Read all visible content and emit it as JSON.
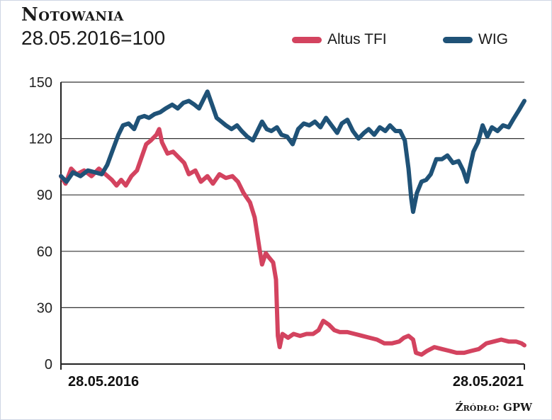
{
  "header": {
    "title": "Notowania",
    "subtitle": "28.05.2016=100"
  },
  "legend": [
    {
      "name": "Altus TFI",
      "color": "#d3435f"
    },
    {
      "name": "WIG",
      "color": "#1f5277"
    }
  ],
  "source": "Źródło: GPW",
  "chart_data": {
    "type": "line",
    "title": "Notowania",
    "subtitle": "28.05.2016=100",
    "xlabel": "",
    "ylabel": "",
    "ylim": [
      0,
      150
    ],
    "yticks": [
      0,
      30,
      60,
      90,
      120,
      150
    ],
    "xlim": [
      2016.41,
      2021.41
    ],
    "xtick_labels": [
      {
        "x": 2016.41,
        "label": "28.05.2016"
      },
      {
        "x": 2021.41,
        "label": "28.05.2021"
      }
    ],
    "grid": "horizontal",
    "legend_position": "top-right",
    "series": [
      {
        "name": "Altus TFI",
        "color": "#d3435f",
        "points": [
          [
            2016.41,
            100
          ],
          [
            2016.46,
            96
          ],
          [
            2016.52,
            104
          ],
          [
            2016.58,
            101
          ],
          [
            2016.66,
            103
          ],
          [
            2016.74,
            100
          ],
          [
            2016.82,
            104
          ],
          [
            2016.89,
            101
          ],
          [
            2016.96,
            98
          ],
          [
            2017.01,
            95
          ],
          [
            2017.06,
            98
          ],
          [
            2017.11,
            95
          ],
          [
            2017.17,
            100
          ],
          [
            2017.23,
            103
          ],
          [
            2017.28,
            110
          ],
          [
            2017.33,
            117
          ],
          [
            2017.38,
            119
          ],
          [
            2017.44,
            122
          ],
          [
            2017.47,
            125
          ],
          [
            2017.5,
            118
          ],
          [
            2017.56,
            112
          ],
          [
            2017.62,
            113
          ],
          [
            2017.68,
            110
          ],
          [
            2017.74,
            107
          ],
          [
            2017.79,
            101
          ],
          [
            2017.86,
            103
          ],
          [
            2017.92,
            97
          ],
          [
            2017.99,
            100
          ],
          [
            2018.05,
            96
          ],
          [
            2018.12,
            101
          ],
          [
            2018.19,
            99
          ],
          [
            2018.26,
            100
          ],
          [
            2018.32,
            97
          ],
          [
            2018.38,
            91
          ],
          [
            2018.45,
            86
          ],
          [
            2018.5,
            78
          ],
          [
            2018.55,
            62
          ],
          [
            2018.58,
            53
          ],
          [
            2018.62,
            59
          ],
          [
            2018.65,
            57
          ],
          [
            2018.7,
            54
          ],
          [
            2018.73,
            45
          ],
          [
            2018.75,
            15
          ],
          [
            2018.77,
            9
          ],
          [
            2018.8,
            16
          ],
          [
            2018.86,
            14
          ],
          [
            2018.92,
            16
          ],
          [
            2018.99,
            15
          ],
          [
            2019.06,
            16
          ],
          [
            2019.13,
            16
          ],
          [
            2019.19,
            18
          ],
          [
            2019.24,
            23
          ],
          [
            2019.3,
            21
          ],
          [
            2019.36,
            18
          ],
          [
            2019.42,
            17
          ],
          [
            2019.5,
            17
          ],
          [
            2019.58,
            16
          ],
          [
            2019.66,
            15
          ],
          [
            2019.74,
            14
          ],
          [
            2019.82,
            13
          ],
          [
            2019.9,
            11
          ],
          [
            2019.98,
            11
          ],
          [
            2020.06,
            12
          ],
          [
            2020.11,
            14
          ],
          [
            2020.16,
            15
          ],
          [
            2020.21,
            13
          ],
          [
            2020.24,
            6
          ],
          [
            2020.3,
            5
          ],
          [
            2020.36,
            7
          ],
          [
            2020.44,
            9
          ],
          [
            2020.52,
            8
          ],
          [
            2020.6,
            7
          ],
          [
            2020.68,
            6
          ],
          [
            2020.76,
            6
          ],
          [
            2020.84,
            7
          ],
          [
            2020.92,
            8
          ],
          [
            2021.0,
            11
          ],
          [
            2021.08,
            12
          ],
          [
            2021.16,
            13
          ],
          [
            2021.24,
            12
          ],
          [
            2021.32,
            12
          ],
          [
            2021.38,
            11
          ],
          [
            2021.41,
            10
          ]
        ]
      },
      {
        "name": "WIG",
        "color": "#1f5277",
        "points": [
          [
            2016.41,
            100
          ],
          [
            2016.47,
            97
          ],
          [
            2016.54,
            102
          ],
          [
            2016.62,
            100
          ],
          [
            2016.7,
            103
          ],
          [
            2016.78,
            102
          ],
          [
            2016.85,
            101
          ],
          [
            2016.91,
            106
          ],
          [
            2016.97,
            114
          ],
          [
            2017.03,
            122
          ],
          [
            2017.08,
            127
          ],
          [
            2017.14,
            128
          ],
          [
            2017.2,
            125
          ],
          [
            2017.25,
            131
          ],
          [
            2017.31,
            132
          ],
          [
            2017.36,
            131
          ],
          [
            2017.42,
            133
          ],
          [
            2017.48,
            134
          ],
          [
            2017.54,
            136
          ],
          [
            2017.61,
            138
          ],
          [
            2017.67,
            136
          ],
          [
            2017.73,
            139
          ],
          [
            2017.79,
            140
          ],
          [
            2017.85,
            138
          ],
          [
            2017.9,
            136
          ],
          [
            2017.95,
            141
          ],
          [
            2017.99,
            145
          ],
          [
            2018.04,
            138
          ],
          [
            2018.09,
            131
          ],
          [
            2018.14,
            129
          ],
          [
            2018.19,
            127
          ],
          [
            2018.25,
            125
          ],
          [
            2018.31,
            127
          ],
          [
            2018.36,
            124
          ],
          [
            2018.42,
            121
          ],
          [
            2018.48,
            119
          ],
          [
            2018.53,
            124
          ],
          [
            2018.58,
            129
          ],
          [
            2018.63,
            125
          ],
          [
            2018.68,
            124
          ],
          [
            2018.74,
            126
          ],
          [
            2018.79,
            122
          ],
          [
            2018.85,
            121
          ],
          [
            2018.91,
            117
          ],
          [
            2018.97,
            125
          ],
          [
            2019.03,
            128
          ],
          [
            2019.09,
            127
          ],
          [
            2019.15,
            129
          ],
          [
            2019.21,
            126
          ],
          [
            2019.27,
            131
          ],
          [
            2019.33,
            127
          ],
          [
            2019.39,
            123
          ],
          [
            2019.44,
            128
          ],
          [
            2019.5,
            130
          ],
          [
            2019.56,
            124
          ],
          [
            2019.62,
            120
          ],
          [
            2019.68,
            123
          ],
          [
            2019.73,
            125
          ],
          [
            2019.79,
            122
          ],
          [
            2019.85,
            126
          ],
          [
            2019.91,
            124
          ],
          [
            2019.96,
            127
          ],
          [
            2020.02,
            124
          ],
          [
            2020.07,
            124
          ],
          [
            2020.12,
            119
          ],
          [
            2020.16,
            104
          ],
          [
            2020.19,
            88
          ],
          [
            2020.21,
            81
          ],
          [
            2020.25,
            91
          ],
          [
            2020.3,
            97
          ],
          [
            2020.35,
            98
          ],
          [
            2020.4,
            101
          ],
          [
            2020.46,
            109
          ],
          [
            2020.52,
            109
          ],
          [
            2020.58,
            111
          ],
          [
            2020.64,
            107
          ],
          [
            2020.7,
            108
          ],
          [
            2020.75,
            103
          ],
          [
            2020.79,
            97
          ],
          [
            2020.82,
            104
          ],
          [
            2020.86,
            113
          ],
          [
            2020.91,
            118
          ],
          [
            2020.96,
            127
          ],
          [
            2021.01,
            121
          ],
          [
            2021.06,
            126
          ],
          [
            2021.12,
            124
          ],
          [
            2021.18,
            127
          ],
          [
            2021.24,
            126
          ],
          [
            2021.3,
            131
          ],
          [
            2021.35,
            135
          ],
          [
            2021.41,
            140
          ]
        ]
      }
    ]
  }
}
